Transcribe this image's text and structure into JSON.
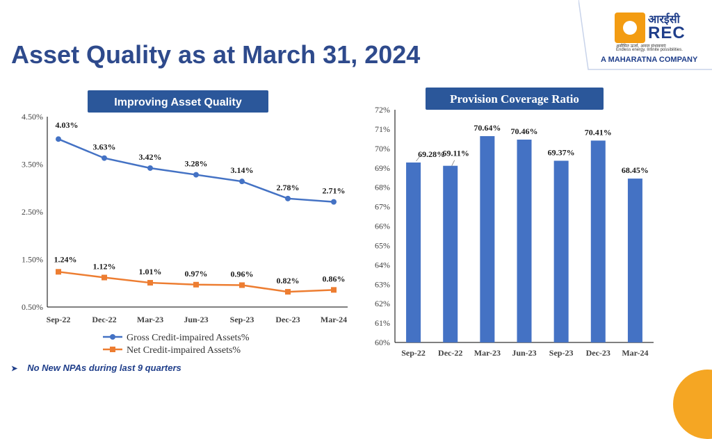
{
  "title": "Asset Quality as at March 31, 2024",
  "logo": {
    "hindi": "आरईसी",
    "name": "REC",
    "tagline_hindi": "असीमित ऊर्जा, अनन्त संभावनाएं",
    "tagline_en": "Endless energy. Infinite possibilities.",
    "company": "A MAHARATNA COMPANY"
  },
  "footnote": "No New NPAs during last 9 quarters",
  "colors": {
    "title": "#2e4a8c",
    "header_bg": "#2b579a",
    "gross_line": "#4472c4",
    "net_line": "#ed7d31",
    "bar": "#4472c4",
    "accent": "#f5a623"
  },
  "chart_data": [
    {
      "type": "line",
      "title": "Improving Asset Quality",
      "categories": [
        "Sep-22",
        "Dec-22",
        "Mar-23",
        "Jun-23",
        "Sep-23",
        "Dec-23",
        "Mar-24"
      ],
      "ylim": [
        0.5,
        4.5
      ],
      "yticks": [
        "4.50%",
        "3.50%",
        "2.50%",
        "1.50%",
        "0.50%"
      ],
      "grid": false,
      "legend_position": "bottom",
      "series": [
        {
          "name": "Gross Credit-impaired Assets%",
          "values": [
            4.03,
            3.63,
            3.42,
            3.28,
            3.14,
            2.78,
            2.71
          ],
          "labels": [
            "4.03%",
            "3.63%",
            "3.42%",
            "3.28%",
            "3.14%",
            "2.78%",
            "2.71%"
          ]
        },
        {
          "name": "Net Credit-impaired Assets%",
          "values": [
            1.24,
            1.12,
            1.01,
            0.97,
            0.96,
            0.82,
            0.86
          ],
          "labels": [
            "1.24%",
            "1.12%",
            "1.01%",
            "0.97%",
            "0.96%",
            "0.82%",
            "0.86%"
          ]
        }
      ]
    },
    {
      "type": "bar",
      "title": "Provision Coverage Ratio",
      "categories": [
        "Sep-22",
        "Dec-22",
        "Mar-23",
        "Jun-23",
        "Sep-23",
        "Dec-23",
        "Mar-24"
      ],
      "values": [
        69.28,
        69.11,
        70.64,
        70.46,
        69.37,
        70.41,
        68.45
      ],
      "labels": [
        "69.28%",
        "69.11%",
        "70.64%",
        "70.46%",
        "69.37%",
        "70.41%",
        "68.45%"
      ],
      "ylim": [
        60,
        72
      ],
      "yticks": [
        "72%",
        "71%",
        "70%",
        "69%",
        "68%",
        "67%",
        "66%",
        "65%",
        "64%",
        "63%",
        "62%",
        "61%",
        "60%"
      ],
      "grid": false
    }
  ]
}
